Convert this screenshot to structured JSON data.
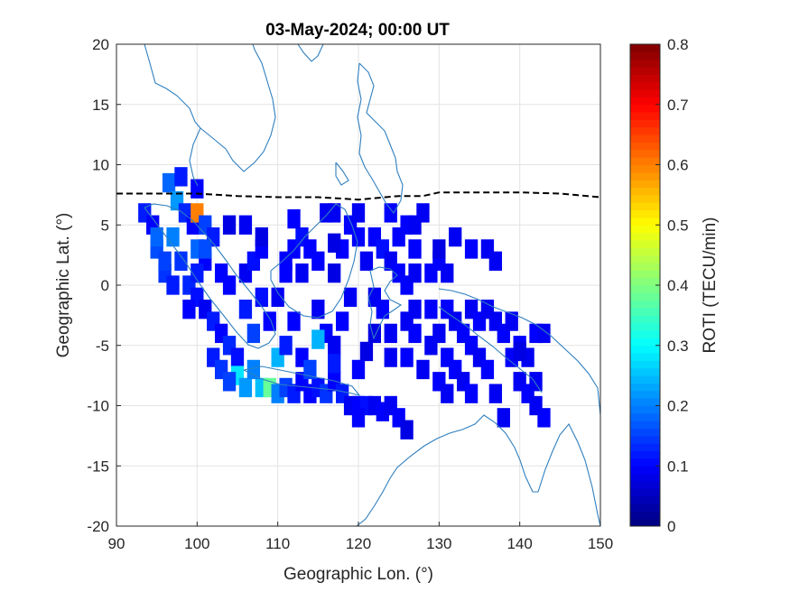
{
  "chart_data": {
    "type": "heatmap",
    "title": "03-May-2024; 00:00 UT",
    "xlabel": "Geographic Lon. (°)",
    "ylabel": "Geographic Lat. (°)",
    "xlim": [
      90,
      150
    ],
    "ylim": [
      -20,
      20
    ],
    "xticks": [
      "90",
      "100",
      "110",
      "120",
      "130",
      "140",
      "150"
    ],
    "yticks": [
      "20",
      "15",
      "10",
      "5",
      "0",
      "-5",
      "-10",
      "-15",
      "-20"
    ],
    "grid": true,
    "colorbar": {
      "label": "ROTI (TECU/min)",
      "range": [
        0,
        0.8
      ],
      "ticks": [
        "0",
        "0.1",
        "0.2",
        "0.3",
        "0.4",
        "0.5",
        "0.6",
        "0.7",
        "0.8"
      ],
      "colormap": "jet"
    },
    "magnetic_equator": [
      [
        90,
        7.6
      ],
      [
        95,
        7.6
      ],
      [
        100,
        7.6
      ],
      [
        105,
        7.4
      ],
      [
        110,
        7.3
      ],
      [
        115,
        7.3
      ],
      [
        120,
        7.1
      ],
      [
        125,
        7.4
      ],
      [
        128,
        7.4
      ],
      [
        130,
        7.7
      ],
      [
        135,
        7.7
      ],
      [
        140,
        7.7
      ],
      [
        145,
        7.6
      ],
      [
        150,
        7.3
      ]
    ],
    "cells": [
      [
        93.5,
        6,
        0.12
      ],
      [
        94.5,
        5,
        0.1
      ],
      [
        95,
        3,
        0.16
      ],
      [
        96,
        1,
        0.14
      ],
      [
        97,
        0,
        0.12
      ],
      [
        96.5,
        8.5,
        0.18
      ],
      [
        97.5,
        7,
        0.22
      ],
      [
        98.5,
        6,
        0.13
      ],
      [
        99.5,
        5,
        0.1
      ],
      [
        100,
        6,
        0.6
      ],
      [
        101,
        5,
        0.15
      ],
      [
        102,
        4,
        0.12
      ],
      [
        100,
        3,
        0.18
      ],
      [
        101,
        2,
        0.1
      ],
      [
        98,
        2,
        0.14
      ],
      [
        99,
        0,
        0.13
      ],
      [
        100,
        -1,
        0.11
      ],
      [
        101,
        -2,
        0.09
      ],
      [
        102,
        -3,
        0.12
      ],
      [
        103,
        -4,
        0.1
      ],
      [
        104,
        -5,
        0.13
      ],
      [
        105,
        -6,
        0.11
      ],
      [
        104,
        0,
        0.1
      ],
      [
        106,
        1,
        0.09
      ],
      [
        107,
        2,
        0.11
      ],
      [
        108,
        3,
        0.1
      ],
      [
        106,
        -2,
        0.12
      ],
      [
        107,
        -4,
        0.15
      ],
      [
        105,
        -7.5,
        0.28
      ],
      [
        106,
        -8.5,
        0.22
      ],
      [
        108,
        -8.5,
        0.25
      ],
      [
        109,
        -8.5,
        0.38
      ],
      [
        110,
        -9,
        0.2
      ],
      [
        111,
        -8.5,
        0.15
      ],
      [
        112,
        -9,
        0.12
      ],
      [
        113,
        -8,
        0.1
      ],
      [
        114,
        -9,
        0.1
      ],
      [
        115,
        -8.5,
        0.11
      ],
      [
        116,
        -9,
        0.14
      ],
      [
        117,
        -8,
        0.1
      ],
      [
        118,
        -9,
        0.12
      ],
      [
        119,
        -10,
        0.09
      ],
      [
        120,
        -10,
        0.1
      ],
      [
        121,
        -10,
        0.11
      ],
      [
        122,
        -10,
        0.09
      ],
      [
        123,
        -10.5,
        0.1
      ],
      [
        124,
        -10,
        0.09
      ],
      [
        125,
        -11,
        0.1
      ],
      [
        120,
        -11,
        0.1
      ],
      [
        126,
        -12,
        0.08
      ],
      [
        110,
        -6,
        0.24
      ],
      [
        111,
        -5,
        0.12
      ],
      [
        109,
        -3,
        0.1
      ],
      [
        110,
        -1,
        0.09
      ],
      [
        111,
        1,
        0.1
      ],
      [
        112,
        3,
        0.1
      ],
      [
        113,
        4,
        0.11
      ],
      [
        113,
        1,
        0.09
      ],
      [
        114,
        3,
        0.1
      ],
      [
        115,
        2,
        0.1
      ],
      [
        115,
        -2,
        0.09
      ],
      [
        116,
        -4,
        0.1
      ],
      [
        117,
        -5,
        0.09
      ],
      [
        118,
        -3,
        0.1
      ],
      [
        119,
        -1,
        0.09
      ],
      [
        117,
        1,
        0.08
      ],
      [
        118,
        3,
        0.1
      ],
      [
        119,
        5,
        0.1
      ],
      [
        120,
        4,
        0.1
      ],
      [
        117,
        6,
        0.09
      ],
      [
        112,
        5.5,
        0.1
      ],
      [
        111,
        2,
        0.1
      ],
      [
        104,
        5,
        0.08
      ],
      [
        106,
        5,
        0.09
      ],
      [
        108,
        4,
        0.08
      ],
      [
        121,
        2,
        0.09
      ],
      [
        122,
        4,
        0.1
      ],
      [
        123,
        3,
        0.11
      ],
      [
        124,
        2,
        0.09
      ],
      [
        125,
        4,
        0.1
      ],
      [
        126,
        5,
        0.1
      ],
      [
        127,
        5,
        0.09
      ],
      [
        128,
        6,
        0.09
      ],
      [
        122,
        -1,
        0.09
      ],
      [
        123,
        -2,
        0.1
      ],
      [
        122,
        -4,
        0.08
      ],
      [
        124,
        -4,
        0.09
      ],
      [
        126,
        -3,
        0.09
      ],
      [
        127,
        -4,
        0.1
      ],
      [
        126,
        0,
        0.1
      ],
      [
        127,
        1,
        0.09
      ],
      [
        125,
        1,
        0.1
      ],
      [
        124,
        -6,
        0.09
      ],
      [
        115,
        -4.5,
        0.24
      ],
      [
        121,
        -5.5,
        0.08
      ],
      [
        120,
        -7,
        0.1
      ],
      [
        126,
        -6,
        0.1
      ],
      [
        128,
        -7,
        0.09
      ],
      [
        129,
        -5,
        0.09
      ],
      [
        130,
        -4,
        0.09
      ],
      [
        131,
        -2,
        0.1
      ],
      [
        132,
        -3,
        0.09
      ],
      [
        133,
        -4,
        0.1
      ],
      [
        134,
        -2,
        0.09
      ],
      [
        135,
        -3,
        0.1
      ],
      [
        136,
        -2,
        0.09
      ],
      [
        137,
        -3,
        0.09
      ],
      [
        138,
        -4,
        0.1
      ],
      [
        139,
        -3,
        0.09
      ],
      [
        140,
        -5,
        0.1
      ],
      [
        141,
        -6,
        0.09
      ],
      [
        142,
        -4,
        0.1
      ],
      [
        143,
        -4,
        0.09
      ],
      [
        131,
        -6,
        0.1
      ],
      [
        132,
        -7,
        0.1
      ],
      [
        134,
        -5,
        0.1
      ],
      [
        135,
        -6,
        0.09
      ],
      [
        133,
        -8,
        0.09
      ],
      [
        130,
        -8,
        0.1
      ],
      [
        134,
        -9,
        0.1
      ],
      [
        136,
        -7,
        0.1
      ],
      [
        137,
        -9,
        0.09
      ],
      [
        139,
        -6,
        0.1
      ],
      [
        140,
        -8,
        0.09
      ],
      [
        141,
        -9,
        0.1
      ],
      [
        142,
        -10,
        0.09
      ],
      [
        138,
        -11,
        0.09
      ],
      [
        131,
        -9,
        0.09
      ],
      [
        130,
        2,
        0.1
      ],
      [
        131,
        1,
        0.09
      ],
      [
        129,
        1,
        0.1
      ],
      [
        130,
        3,
        0.08
      ],
      [
        132,
        4,
        0.09
      ],
      [
        134,
        3,
        0.1
      ],
      [
        136,
        3,
        0.09
      ],
      [
        137,
        2,
        0.09
      ],
      [
        140,
        -5.5,
        0.08
      ],
      [
        142,
        -8,
        0.09
      ],
      [
        143,
        -11,
        0.1
      ],
      [
        120,
        6,
        0.09
      ],
      [
        117,
        3.5,
        0.08
      ],
      [
        100,
        8,
        0.1
      ],
      [
        98,
        9,
        0.12
      ],
      [
        95,
        4,
        0.18
      ],
      [
        97,
        4,
        0.2
      ],
      [
        96,
        2,
        0.15
      ],
      [
        103,
        1,
        0.1
      ],
      [
        108,
        -1,
        0.11
      ],
      [
        112,
        -3,
        0.1
      ],
      [
        113,
        -6,
        0.1
      ],
      [
        114,
        -7,
        0.15
      ],
      [
        117,
        -6.5,
        0.12
      ],
      [
        99,
        -2,
        0.1
      ],
      [
        102,
        -6,
        0.12
      ],
      [
        103,
        -7,
        0.14
      ],
      [
        104,
        -8,
        0.15
      ],
      [
        101,
        3,
        0.16
      ],
      [
        100,
        1,
        0.12
      ],
      [
        107,
        -7,
        0.2
      ],
      [
        116,
        6,
        0.09
      ],
      [
        124,
        6,
        0.1
      ],
      [
        127,
        3,
        0.1
      ],
      [
        127,
        -2,
        0.09
      ],
      [
        129,
        -2,
        0.1
      ]
    ]
  }
}
